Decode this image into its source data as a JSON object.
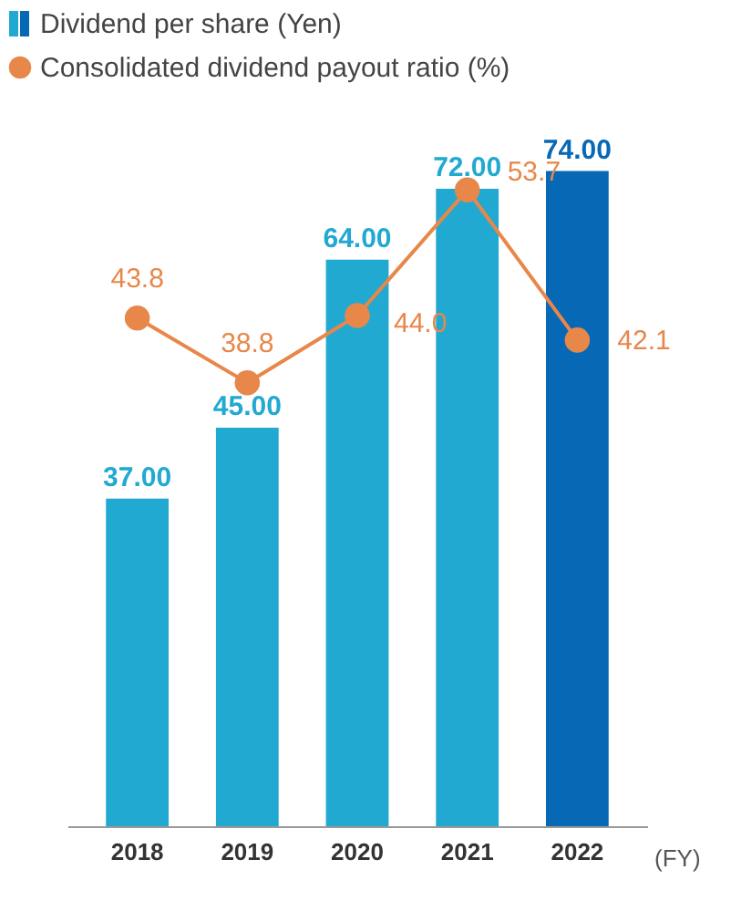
{
  "chart_data": {
    "type": "bar",
    "categories": [
      "2018",
      "2019",
      "2020",
      "2021",
      "2022"
    ],
    "xlabel": "(FY)",
    "data_labels": true,
    "tick_labels": "x",
    "legend": "top left",
    "marker": "circle",
    "series": [
      {
        "name": "Dividend per share (Yen)",
        "colors": [
          "#22a9d1",
          "#22a9d1",
          "#22a9d1",
          "#22a9d1",
          "#0768b5"
        ],
        "color": "#22a9d1",
        "values": [
          37.0,
          45.0,
          64.0,
          72.0,
          74.0
        ],
        "value_labels": [
          "37.00",
          "45.00",
          "64.00",
          "72.00",
          "74.00"
        ]
      },
      {
        "name": "Consolidated dividend payout ratio (%)",
        "type": "line",
        "axis": "y2",
        "color": "#e8874a",
        "values": [
          43.8,
          38.8,
          44.0,
          53.7,
          42.1
        ],
        "value_labels": [
          "43.8",
          "38.8",
          "44.0",
          "53.7",
          "42.1"
        ]
      }
    ]
  }
}
